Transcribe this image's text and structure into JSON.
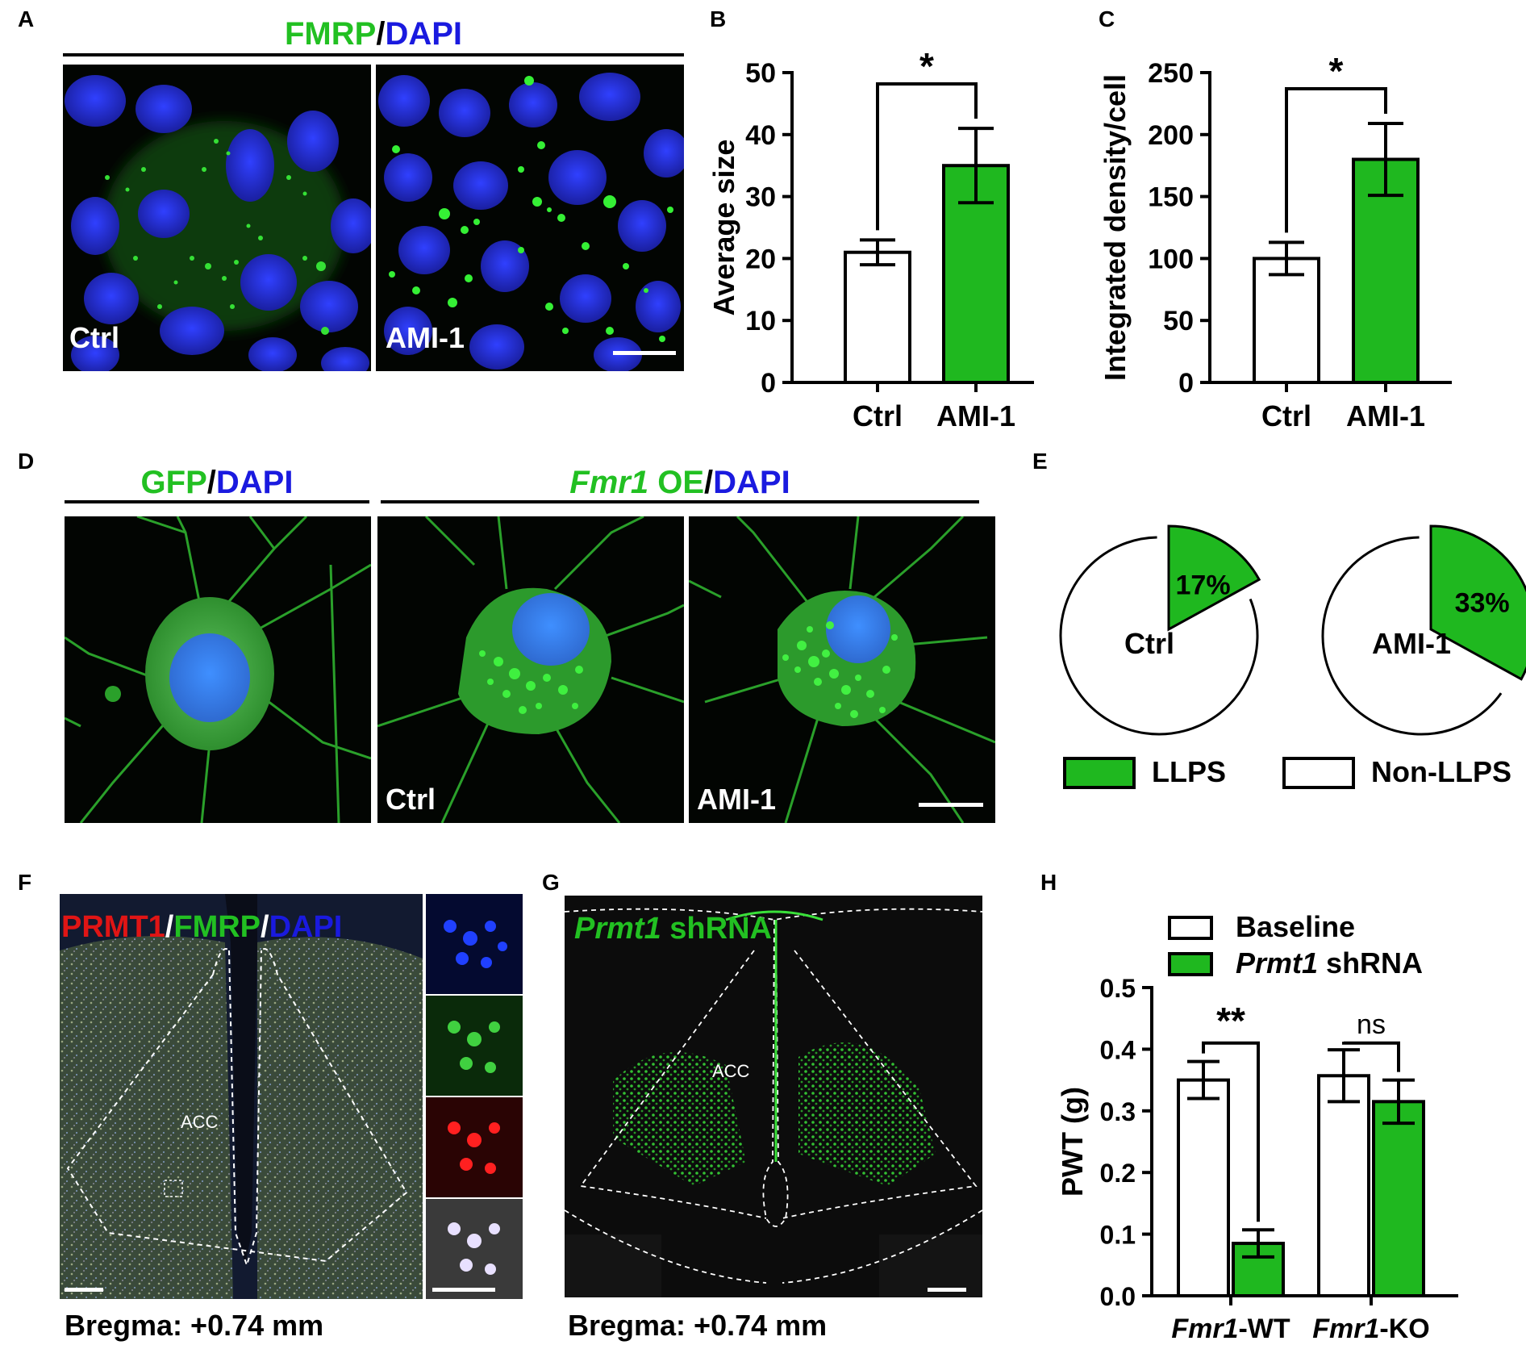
{
  "panel_labels": {
    "A": "A",
    "B": "B",
    "C": "C",
    "D": "D",
    "E": "E",
    "F": "F",
    "G": "G",
    "H": "H"
  },
  "panel_a": {
    "header": {
      "fmrp": "FMRP",
      "sep": "/",
      "dapi": "DAPI"
    },
    "left_label": "Ctrl",
    "right_label": "AMI-1"
  },
  "panel_d": {
    "header_left": {
      "gfp": "GFP",
      "sep": "/",
      "dapi": "DAPI"
    },
    "header_right": {
      "fmr1": "Fmr1",
      "oe": " OE",
      "sep": "/",
      "dapi": "DAPI"
    },
    "mid_label": "Ctrl",
    "right_label": "AMI-1"
  },
  "panel_f": {
    "header": {
      "prmt1": "PRMT1",
      "sep1": "/",
      "fmrp": "FMRP",
      "sep2": "/",
      "dapi": "DAPI"
    },
    "region": "ACC",
    "bregma": "Bregma: +0.74 mm"
  },
  "panel_g": {
    "header": {
      "prmt1": "Prmt1",
      "shrna": " shRNA"
    },
    "region": "ACC",
    "bregma": "Bregma: +0.74 mm"
  },
  "colors": {
    "green_bar": "#1fb81f",
    "label_green": "#22c022",
    "label_blue": "#1a1adf",
    "label_red": "#e01515"
  },
  "chart_data": [
    {
      "id": "B",
      "type": "bar",
      "categories": [
        "Ctrl",
        "AMI-1"
      ],
      "values": [
        21,
        35
      ],
      "errors": [
        2,
        6
      ],
      "ylabel": "Average size",
      "ylim": [
        0,
        50
      ],
      "yticks": [
        "0",
        "10",
        "20",
        "30",
        "40",
        "50"
      ],
      "significance": "*"
    },
    {
      "id": "C",
      "type": "bar",
      "categories": [
        "Ctrl",
        "AMI-1"
      ],
      "values": [
        100,
        180
      ],
      "errors": [
        13,
        29
      ],
      "ylabel": "Integrated density/cell",
      "ylim": [
        0,
        250
      ],
      "yticks": [
        "0",
        "50",
        "100",
        "150",
        "200",
        "250"
      ],
      "significance": "*"
    },
    {
      "id": "E",
      "type": "pie",
      "pies": [
        {
          "name": "Ctrl",
          "llps_percent": 17,
          "label": "17%"
        },
        {
          "name": "AMI-1",
          "llps_percent": 33,
          "label": "33%"
        }
      ],
      "legend": [
        "LLPS",
        "Non-LLPS"
      ]
    },
    {
      "id": "H",
      "type": "bar",
      "groups": [
        {
          "italic": "Fmr1",
          "suffix": "-WT"
        },
        {
          "italic": "Fmr1",
          "suffix": "-KO"
        }
      ],
      "series": [
        {
          "name": "Baseline",
          "values": [
            0.35,
            0.357
          ],
          "errors": [
            0.03,
            0.042
          ]
        },
        {
          "name_italic": "Prmt1",
          "name_suffix": " shRNA",
          "values": [
            0.085,
            0.315
          ],
          "errors": [
            0.022,
            0.035
          ]
        }
      ],
      "ylabel": "PWT (g)",
      "ylim": [
        0,
        0.5
      ],
      "yticks": [
        "0.0",
        "0.1",
        "0.2",
        "0.3",
        "0.4",
        "0.5"
      ],
      "significance": [
        "**",
        "ns"
      ]
    }
  ]
}
